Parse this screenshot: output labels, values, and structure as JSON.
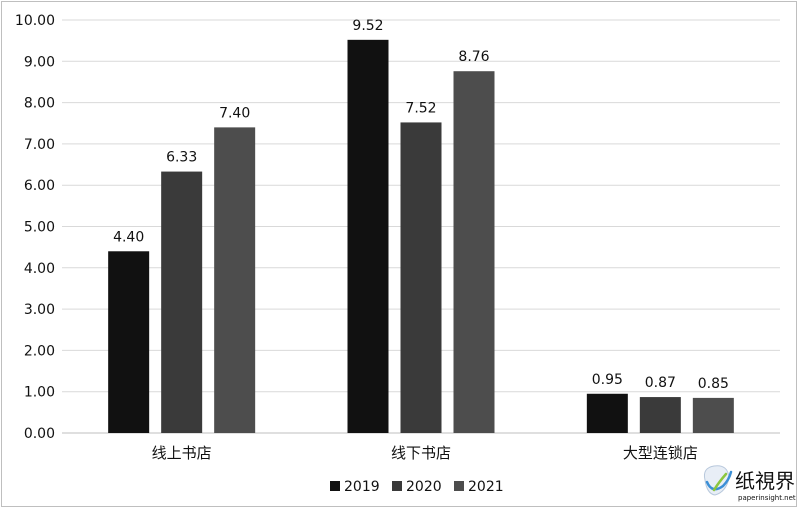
{
  "chart_data": {
    "type": "bar",
    "categories": [
      "线上书店",
      "线下书店",
      "大型连锁店"
    ],
    "series": [
      {
        "name": "2019",
        "values": [
          4.4,
          9.52,
          0.95
        ],
        "labels": [
          "4.40",
          "9.52",
          "0.95"
        ],
        "color": "#111111"
      },
      {
        "name": "2020",
        "values": [
          6.33,
          7.52,
          0.87
        ],
        "labels": [
          "6.33",
          "7.52",
          "0.87"
        ],
        "color": "#3a3a3a"
      },
      {
        "name": "2021",
        "values": [
          7.4,
          8.76,
          0.85
        ],
        "labels": [
          "7.40",
          "8.76",
          "0.85"
        ],
        "color": "#4d4d4d"
      }
    ],
    "yticks": [
      "0.00",
      "1.00",
      "2.00",
      "3.00",
      "4.00",
      "5.00",
      "6.00",
      "7.00",
      "8.00",
      "9.00",
      "10.00"
    ],
    "ylim": [
      0,
      10
    ],
    "grid": true,
    "legend_position": "bottom-center",
    "title": "",
    "xlabel": "",
    "ylabel": ""
  },
  "watermark": {
    "text": "纸視界",
    "url": "paperinsight.net",
    "colors": {
      "text": "#3a3a3a",
      "accent_blue": "#3b8fd6",
      "accent_green": "#8cc63f"
    }
  }
}
